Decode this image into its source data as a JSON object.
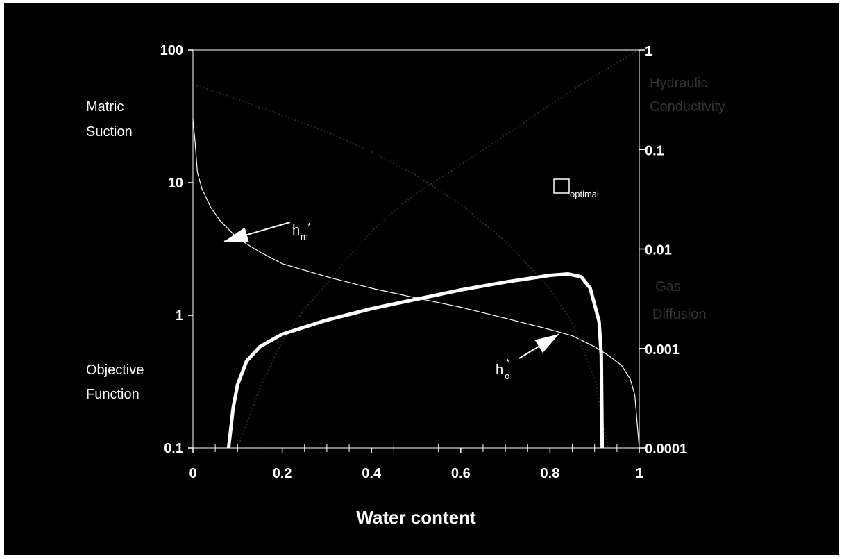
{
  "chart_data": {
    "type": "line",
    "xlabel": "Water content",
    "x_ticks": [
      "0",
      "0.2",
      "0.4",
      "0.6",
      "0.8",
      "1"
    ],
    "xlim": [
      0,
      1
    ],
    "left_axis": {
      "scale": "log",
      "ylim": [
        0.1,
        100
      ],
      "ticks": [
        "0.1",
        "1",
        "10",
        "100"
      ],
      "label_top": [
        "Matric",
        "Suction"
      ],
      "label_bottom": [
        "Objective",
        "Function"
      ]
    },
    "right_axis": {
      "scale": "log",
      "ylim": [
        0.0001,
        1
      ],
      "ticks": [
        "0.0001",
        "0.001",
        "0.01",
        "0.1",
        "1"
      ],
      "label_top": [
        "Hydraulic",
        "Conductivity"
      ],
      "label_bottom": [
        "Gas",
        "Diffusion"
      ]
    },
    "series": [
      {
        "name": "h_m*",
        "axis": "left",
        "color": "#ffffff",
        "width": 1.2,
        "points": [
          [
            0.0,
            30
          ],
          [
            0.005,
            20
          ],
          [
            0.01,
            12
          ],
          [
            0.02,
            9
          ],
          [
            0.04,
            6.5
          ],
          [
            0.06,
            5.2
          ],
          [
            0.1,
            3.8
          ],
          [
            0.15,
            3
          ],
          [
            0.2,
            2.45
          ],
          [
            0.3,
            1.95
          ],
          [
            0.4,
            1.6
          ],
          [
            0.5,
            1.35
          ],
          [
            0.6,
            1.15
          ],
          [
            0.7,
            0.95
          ],
          [
            0.8,
            0.78
          ],
          [
            0.85,
            0.7
          ],
          [
            0.9,
            0.58
          ],
          [
            0.93,
            0.5
          ],
          [
            0.96,
            0.42
          ],
          [
            0.98,
            0.33
          ],
          [
            0.99,
            0.25
          ],
          [
            1.0,
            0.1
          ]
        ]
      },
      {
        "name": "Hydraulic Conductivity",
        "axis": "right",
        "color": "#2a2a2a",
        "width": 2,
        "points": [
          [
            0.1,
            0.0001
          ],
          [
            0.15,
            0.0004
          ],
          [
            0.2,
            0.0012
          ],
          [
            0.25,
            0.0025
          ],
          [
            0.3,
            0.0045
          ],
          [
            0.35,
            0.0085
          ],
          [
            0.4,
            0.015
          ],
          [
            0.45,
            0.024
          ],
          [
            0.5,
            0.036
          ],
          [
            0.6,
            0.07
          ],
          [
            0.7,
            0.14
          ],
          [
            0.8,
            0.28
          ],
          [
            0.9,
            0.55
          ],
          [
            1.0,
            1.0
          ]
        ]
      },
      {
        "name": "Gas Diffusion",
        "axis": "right",
        "color": "#2a2a2a",
        "width": 2,
        "points": [
          [
            0.0,
            0.45
          ],
          [
            0.05,
            0.38
          ],
          [
            0.1,
            0.32
          ],
          [
            0.2,
            0.22
          ],
          [
            0.3,
            0.15
          ],
          [
            0.4,
            0.095
          ],
          [
            0.5,
            0.055
          ],
          [
            0.6,
            0.028
          ],
          [
            0.7,
            0.012
          ],
          [
            0.8,
            0.004
          ],
          [
            0.85,
            0.0018
          ],
          [
            0.9,
            0.0005
          ],
          [
            0.93,
            0.0001
          ]
        ]
      },
      {
        "name": "h_o*",
        "axis": "left",
        "color": "#ffffff",
        "width": 5,
        "points": [
          [
            0.08,
            0.1
          ],
          [
            0.09,
            0.2
          ],
          [
            0.1,
            0.3
          ],
          [
            0.12,
            0.45
          ],
          [
            0.15,
            0.58
          ],
          [
            0.2,
            0.72
          ],
          [
            0.3,
            0.92
          ],
          [
            0.4,
            1.12
          ],
          [
            0.5,
            1.32
          ],
          [
            0.6,
            1.55
          ],
          [
            0.7,
            1.78
          ],
          [
            0.8,
            2.0
          ],
          [
            0.84,
            2.05
          ],
          [
            0.87,
            1.95
          ],
          [
            0.89,
            1.6
          ],
          [
            0.9,
            1.2
          ],
          [
            0.91,
            0.9
          ],
          [
            0.915,
            0.5
          ],
          [
            0.917,
            0.1
          ]
        ]
      }
    ],
    "annotations": {
      "hm": {
        "main": "h",
        "sub": "m",
        "sup": "*",
        "arrow_to": [
          0.07,
          3.6
        ]
      },
      "ho": {
        "main": "h",
        "sub": "o",
        "sup": "*",
        "arrow_to": [
          0.82,
          0.72
        ]
      },
      "legend_box": {
        "label": "optimal"
      }
    }
  }
}
